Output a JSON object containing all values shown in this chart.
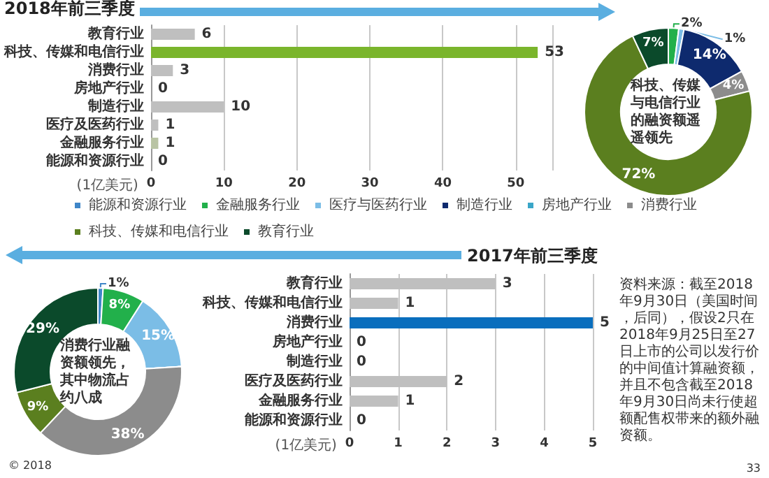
{
  "chart_data": [
    {
      "type": "bar",
      "title": "2018年前三季度",
      "orientation": "horizontal",
      "categories": [
        "教育行业",
        "科技、传媒和电信行业",
        "消费行业",
        "房地产行业",
        "制造行业",
        "医疗及医药行业",
        "金融服务行业",
        "能源和资源行业"
      ],
      "values": [
        6,
        53,
        3,
        0,
        10,
        1,
        1,
        0
      ],
      "colors": [
        "#bfbfbf",
        "#7ab52c",
        "#bfbfbf",
        "#bfbfbf",
        "#bfbfbf",
        "#bfbfbf",
        "#b9c4a4",
        "#bfbfbf"
      ],
      "xlim": [
        0,
        55
      ],
      "xticks": [
        0,
        10,
        20,
        30,
        40,
        50
      ],
      "xlabel": "(1亿美元)",
      "grid": "x",
      "data_labels": true
    },
    {
      "type": "donut",
      "categories": [
        "能源和资源行业",
        "金融服务行业",
        "医疗与医药行业",
        "制造行业",
        "房地产行业",
        "消费行业",
        "科技、传媒和电信行业",
        "教育行业"
      ],
      "values": [
        0,
        2,
        1,
        14,
        0,
        4,
        72,
        7
      ],
      "colors": [
        "#3f86c8",
        "#22b04b",
        "#7bbde6",
        "#0e2a6e",
        "#3aa6c8",
        "#8c8c8c",
        "#5b7f1f",
        "#0b4a2b"
      ],
      "value_labels": [
        null,
        "2%",
        "1%",
        "14%",
        null,
        "4%",
        "72%",
        "7%"
      ],
      "legend": "bottom",
      "annotations": [
        "科技、传媒与电信行业的融资额遥遥领先"
      ]
    },
    {
      "type": "bar",
      "title": "2017年前三季度",
      "orientation": "horizontal",
      "categories": [
        "教育行业",
        "科技、传媒和电信行业",
        "消费行业",
        "房地产行业",
        "制造行业",
        "医疗及医药行业",
        "金融服务行业",
        "能源和资源行业"
      ],
      "values": [
        3,
        1,
        5,
        0,
        0,
        2,
        1,
        0
      ],
      "colors": [
        "#bfbfbf",
        "#bfbfbf",
        "#0a6ebd",
        "#bfbfbf",
        "#bfbfbf",
        "#bfbfbf",
        "#bfbfbf",
        "#bfbfbf"
      ],
      "xlim": [
        0,
        5
      ],
      "xticks": [
        0,
        1,
        2,
        3,
        4,
        5
      ],
      "xlabel": "(1亿美元)",
      "grid": "x",
      "data_labels": true,
      "annotations": [
        "资料来源：截至2018年9月30日（美国时间，后同），假设2只在2018年9月25日至27日上市的公司以发行价的中间值计算融资额，并且不包含截至2018年9月30日尚未行使超额配售权带来的额外融资额。",
        "33"
      ]
    },
    {
      "type": "donut",
      "categories": [
        null,
        null,
        null,
        null,
        null,
        null,
        null,
        null
      ],
      "values": [
        1,
        8,
        15,
        0,
        0,
        38,
        9,
        29
      ],
      "colors": [
        "#3f86c8",
        "#22b04b",
        "#7bbde6",
        "#0e2a6e",
        "#3aa6c8",
        "#8c8c8c",
        "#5b7f1f",
        "#0b4a2b"
      ],
      "value_labels": [
        "1%",
        "8%",
        "15%",
        null,
        null,
        "38%",
        "9%",
        "29%"
      ],
      "annotations": [
        "消费行业融资额领先，其中物流占约八成",
        "© 2018"
      ]
    }
  ]
}
